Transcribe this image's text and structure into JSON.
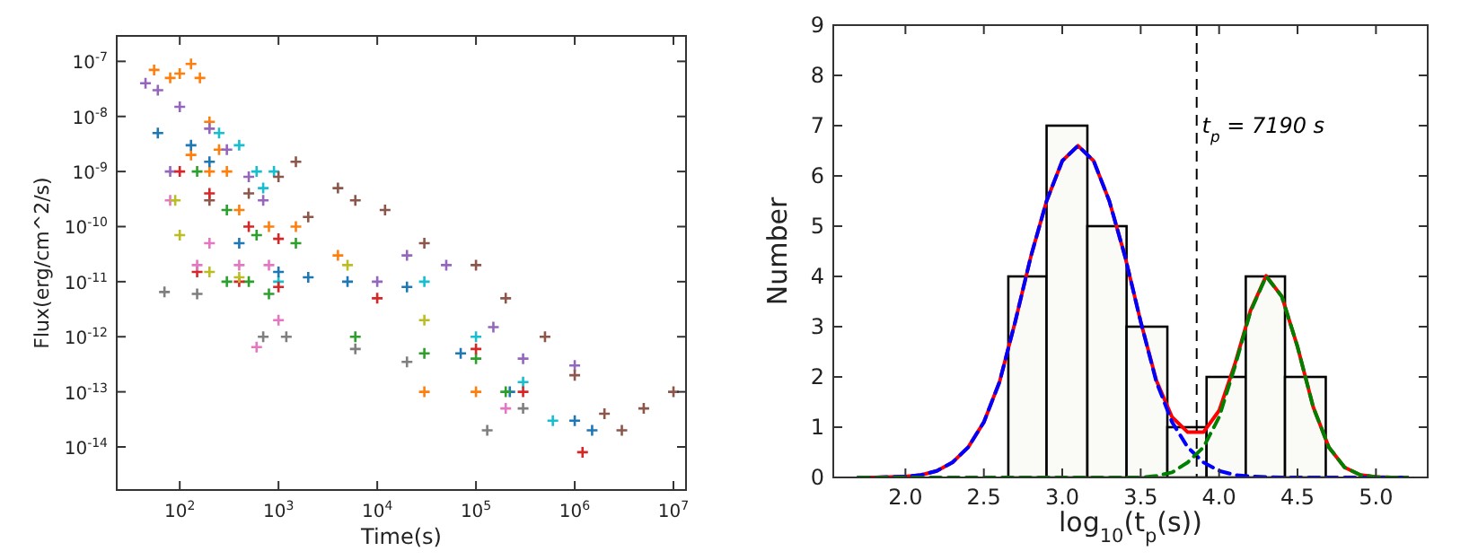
{
  "chart_data": [
    {
      "type": "scatter",
      "xlabel": "Time(s)",
      "ylabel": "Flux(erg/cm^2/s)",
      "log": "xy",
      "marker": "cross",
      "xlim": [
        23,
        13400000
      ],
      "ylim": [
        1.65e-15,
        2.9e-07
      ],
      "xticks": [
        {
          "value": 100,
          "label": "10$^{2}$"
        },
        {
          "value": 1000,
          "label": "10$^{3}$"
        },
        {
          "value": 10000,
          "label": "10$^{4}$"
        },
        {
          "value": 100000,
          "label": "10$^{5}$"
        },
        {
          "value": 1000000,
          "label": "10$^{6}$"
        },
        {
          "value": 10000000,
          "label": "10$^{7}$"
        }
      ],
      "yticks": [
        {
          "value": 1e-14,
          "label": "10$^{-14}$"
        },
        {
          "value": 1e-13,
          "label": "10$^{-13}$"
        },
        {
          "value": 1e-12,
          "label": "10$^{-12}$"
        },
        {
          "value": 1e-11,
          "label": "10$^{-11}$"
        },
        {
          "value": 1e-10,
          "label": "10$^{-10}$"
        },
        {
          "value": 1e-09,
          "label": "10$^{-9}$"
        },
        {
          "value": 1e-08,
          "label": "10$^{-8}$"
        },
        {
          "value": 1e-07,
          "label": "10$^{-7}$"
        }
      ],
      "series": [
        {
          "color": "#ff7f0e",
          "x": [
            55,
            80,
            100,
            130,
            160,
            200,
            250,
            300,
            130,
            200,
            400,
            800,
            1500,
            4000,
            30000,
            100000
          ],
          "values": [
            7e-08,
            5e-08,
            6e-08,
            9e-08,
            5e-08,
            8e-09,
            2.5e-09,
            1e-09,
            2e-09,
            1e-09,
            2e-10,
            1e-10,
            1e-10,
            3e-11,
            1e-13,
            1e-13
          ]
        },
        {
          "color": "#9467bd",
          "x": [
            45,
            60,
            100,
            200,
            300,
            500,
            700,
            80,
            10000,
            20000,
            50000,
            150000,
            300000,
            1000000
          ],
          "values": [
            4e-08,
            3e-08,
            1.5e-08,
            6e-09,
            2.5e-09,
            8e-10,
            3e-10,
            1e-09,
            1e-11,
            3e-11,
            2e-11,
            1.5e-12,
            4e-13,
            3e-13
          ]
        },
        {
          "color": "#17becf",
          "x": [
            250,
            400,
            600,
            700,
            900,
            1000,
            30000,
            100000,
            300000,
            600000
          ],
          "values": [
            5e-09,
            3e-09,
            1e-09,
            5e-10,
            1e-09,
            1e-11,
            1e-11,
            1e-12,
            1.5e-13,
            3e-14
          ]
        },
        {
          "color": "#8c564b",
          "x": [
            200,
            500,
            1000,
            1500,
            2000,
            4000,
            6000,
            12000,
            30000,
            100000,
            200000,
            500000,
            1000000,
            2000000,
            3000000,
            5000000,
            10000000
          ],
          "values": [
            3e-10,
            4e-10,
            8e-10,
            1.5e-09,
            1.5e-10,
            5e-10,
            3e-10,
            2e-10,
            5e-11,
            2e-11,
            5e-12,
            1e-12,
            2e-13,
            4e-14,
            2e-14,
            5e-14,
            1e-13
          ]
        },
        {
          "color": "#1f77b4",
          "x": [
            60,
            130,
            200,
            400,
            1000,
            2000,
            5000,
            20000,
            70000,
            220000,
            1000000,
            1500000
          ],
          "values": [
            5e-09,
            3e-09,
            1.5e-09,
            5e-11,
            1.5e-11,
            1.2e-11,
            1e-11,
            8e-12,
            5e-13,
            1e-13,
            3e-14,
            2e-14
          ]
        },
        {
          "color": "#2ca02c",
          "x": [
            150,
            300,
            600,
            1500,
            300,
            500,
            800,
            6000,
            30000,
            100000,
            200000
          ],
          "values": [
            1e-09,
            2e-10,
            7e-11,
            5e-11,
            1e-11,
            1e-11,
            6e-12,
            1e-12,
            5e-13,
            4e-13,
            1e-13
          ]
        },
        {
          "color": "#d62728",
          "x": [
            100,
            200,
            500,
            1000,
            150,
            400,
            1000,
            10000,
            100000,
            300000,
            1200000
          ],
          "values": [
            1e-09,
            4e-10,
            1e-10,
            6e-11,
            1.5e-11,
            1e-11,
            8e-12,
            5e-12,
            6e-13,
            1e-13,
            8e-15
          ]
        },
        {
          "color": "#e377c2",
          "x": [
            80,
            200,
            400,
            800,
            150,
            600,
            1000,
            200000
          ],
          "values": [
            3e-10,
            5e-11,
            2e-11,
            2e-11,
            2e-11,
            6.5e-13,
            2e-12,
            5e-14
          ]
        },
        {
          "color": "#7f7f7f",
          "x": [
            70,
            150,
            700,
            1200,
            6000,
            20000,
            130000,
            300000
          ],
          "values": [
            6.5e-12,
            6e-12,
            1e-12,
            1e-12,
            6e-13,
            3.5e-13,
            2e-14,
            5e-14
          ]
        },
        {
          "color": "#bcbd22",
          "x": [
            90,
            100,
            200,
            400,
            5000,
            30000
          ],
          "values": [
            3e-10,
            7e-11,
            1.5e-11,
            1.2e-11,
            2e-11,
            2e-12
          ]
        }
      ]
    },
    {
      "type": "histogram",
      "xlabel": "log$_{10}$(t$_{p}$(s))",
      "ylabel": "Number",
      "bins": [
        2.656,
        2.9,
        3.16,
        3.41,
        3.67,
        3.92,
        4.17,
        4.42,
        4.68
      ],
      "values": [
        4,
        7,
        5,
        3,
        1,
        2,
        4,
        2
      ],
      "color": "#fafaf7",
      "xlim": [
        1.54,
        5.33
      ],
      "ylim": [
        0,
        9
      ],
      "xticks": [
        {
          "value": 2,
          "label": "2.0"
        },
        {
          "value": 2.5,
          "label": "2.5"
        },
        {
          "value": 3,
          "label": "3.0"
        },
        {
          "value": 3.5,
          "label": "3.5"
        },
        {
          "value": 4,
          "label": "4.0"
        },
        {
          "value": 4.5,
          "label": "4.5"
        },
        {
          "value": 5,
          "label": "5.0"
        }
      ],
      "yticks": [
        0,
        1,
        2,
        3,
        4,
        5,
        6,
        7,
        8,
        9
      ],
      "ref_lines": [
        {
          "axis": "x",
          "value": 3.857,
          "color": "#000000",
          "line_style": "dashed"
        }
      ],
      "annotations": [
        "t$_{p}$ = 7190  s"
      ],
      "series": [
        {
          "type": "line",
          "color": "#ff0000",
          "line_style": "solid",
          "x": [
            1.7,
            1.8,
            1.9,
            2.0,
            2.1,
            2.2,
            2.3,
            2.4,
            2.5,
            2.6,
            2.7,
            2.8,
            2.9,
            3.0,
            3.1,
            3.2,
            3.3,
            3.4,
            3.5,
            3.6,
            3.7,
            3.8,
            3.9,
            4.0,
            4.1,
            4.2,
            4.3,
            4.4,
            4.5,
            4.6,
            4.7,
            4.8,
            4.9,
            5.0,
            5.1,
            5.2
          ],
          "values": [
            0,
            0,
            0.01,
            0.02,
            0.05,
            0.13,
            0.3,
            0.6,
            1.1,
            1.9,
            3.1,
            4.4,
            5.5,
            6.3,
            6.6,
            6.3,
            5.5,
            4.4,
            3.1,
            1.93,
            1.2,
            0.9,
            0.9,
            1.33,
            2.25,
            3.32,
            4.01,
            3.6,
            2.6,
            1.4,
            0.6,
            0.2,
            0.05,
            0.01,
            0,
            0
          ]
        },
        {
          "type": "line",
          "color": "#0000ff",
          "line_style": "dashed",
          "x": [
            1.7,
            1.8,
            1.9,
            2.0,
            2.1,
            2.2,
            2.3,
            2.4,
            2.5,
            2.6,
            2.7,
            2.8,
            2.9,
            3.0,
            3.1,
            3.2,
            3.3,
            3.4,
            3.5,
            3.6,
            3.7,
            3.8,
            3.9,
            4.0,
            4.1,
            4.2,
            4.3,
            4.4,
            4.5,
            4.6,
            4.7,
            4.8,
            4.9,
            5.0,
            5.1,
            5.2
          ],
          "values": [
            0,
            0,
            0.01,
            0.02,
            0.05,
            0.13,
            0.3,
            0.6,
            1.1,
            1.9,
            3.1,
            4.4,
            5.5,
            6.3,
            6.6,
            6.3,
            5.5,
            4.4,
            3.1,
            1.9,
            1.1,
            0.6,
            0.3,
            0.13,
            0.05,
            0.02,
            0.01,
            0,
            0,
            0,
            0,
            0,
            0,
            0,
            0,
            0
          ]
        },
        {
          "type": "line",
          "color": "#008000",
          "line_style": "dashed",
          "x": [
            1.7,
            1.8,
            1.9,
            2.0,
            2.1,
            2.2,
            2.3,
            2.4,
            2.5,
            2.6,
            2.7,
            2.8,
            2.9,
            3.0,
            3.1,
            3.2,
            3.3,
            3.4,
            3.5,
            3.6,
            3.7,
            3.8,
            3.9,
            4.0,
            4.1,
            4.2,
            4.3,
            4.4,
            4.5,
            4.6,
            4.7,
            4.8,
            4.9,
            5.0,
            5.1,
            5.2
          ],
          "values": [
            0,
            0,
            0,
            0,
            0,
            0,
            0,
            0,
            0,
            0,
            0,
            0,
            0,
            0,
            0,
            0,
            0,
            0,
            0,
            0.03,
            0.1,
            0.3,
            0.6,
            1.2,
            2.2,
            3.3,
            4.0,
            3.6,
            2.6,
            1.4,
            0.6,
            0.2,
            0.05,
            0.01,
            0,
            0
          ]
        }
      ]
    }
  ]
}
